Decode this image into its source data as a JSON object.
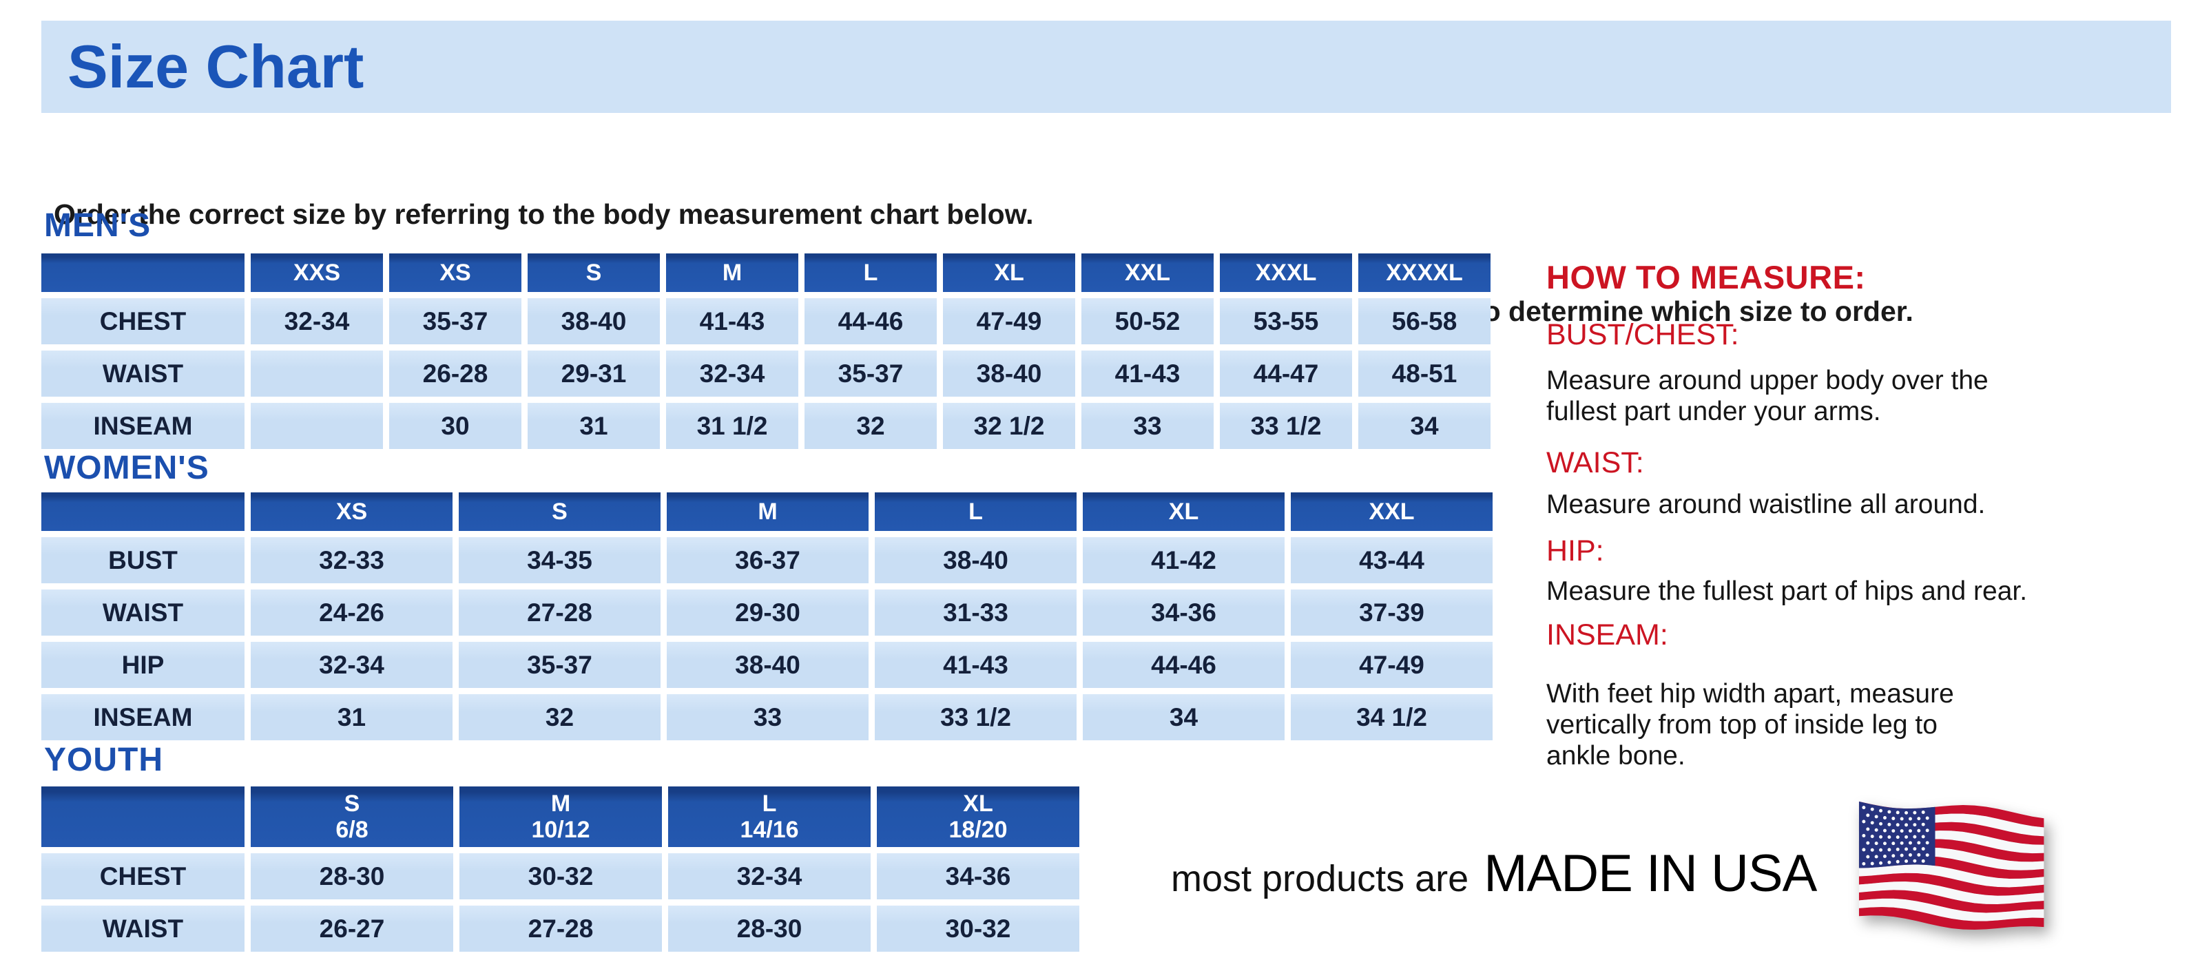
{
  "title": "Size Chart",
  "intro": {
    "line1": "Order the correct size by referring to the body measurement chart below.",
    "line2": "Measurements shown on size chart are body measurements.  Find your body measurements on the chart to determine which size to order."
  },
  "tables": {
    "mens": {
      "heading": "MEN'S",
      "columns": [
        "",
        "XXS",
        "XS",
        "S",
        "M",
        "L",
        "XL",
        "XXL",
        "XXXL",
        "XXXXL"
      ],
      "rows": [
        {
          "label": "CHEST",
          "values": [
            "32-34",
            "35-37",
            "38-40",
            "41-43",
            "44-46",
            "47-49",
            "50-52",
            "53-55",
            "56-58"
          ]
        },
        {
          "label": "WAIST",
          "values": [
            "",
            "26-28",
            "29-31",
            "32-34",
            "35-37",
            "38-40",
            "41-43",
            "44-47",
            "48-51"
          ]
        },
        {
          "label": "INSEAM",
          "values": [
            "",
            "30",
            "31",
            "31 1/2",
            "32",
            "32 1/2",
            "33",
            "33 1/2",
            "34"
          ]
        }
      ]
    },
    "womens": {
      "heading": "WOMEN'S",
      "columns": [
        "",
        "XS",
        "S",
        "M",
        "L",
        "XL",
        "XXL"
      ],
      "rows": [
        {
          "label": "BUST",
          "values": [
            "32-33",
            "34-35",
            "36-37",
            "38-40",
            "41-42",
            "43-44"
          ]
        },
        {
          "label": "WAIST",
          "values": [
            "24-26",
            "27-28",
            "29-30",
            "31-33",
            "34-36",
            "37-39"
          ]
        },
        {
          "label": "HIP",
          "values": [
            "32-34",
            "35-37",
            "38-40",
            "41-43",
            "44-46",
            "47-49"
          ]
        },
        {
          "label": "INSEAM",
          "values": [
            "31",
            "32",
            "33",
            "33 1/2",
            "34",
            "34 1/2"
          ]
        }
      ]
    },
    "youth": {
      "heading": "YOUTH",
      "columns": [
        "",
        "S\n6/8",
        "M\n10/12",
        "L\n14/16",
        "XL\n18/20"
      ],
      "rows": [
        {
          "label": "CHEST",
          "values": [
            "28-30",
            "30-32",
            "32-34",
            "34-36"
          ]
        },
        {
          "label": "WAIST",
          "values": [
            "26-27",
            "27-28",
            "28-30",
            "30-32"
          ]
        }
      ]
    }
  },
  "how_to_measure": {
    "heading": "HOW TO MEASURE:",
    "items": [
      {
        "label": "BUST/CHEST:",
        "text": "Measure around upper body over the\nfullest part under your arms."
      },
      {
        "label": "WAIST:",
        "text": "Measure around waistline all around."
      },
      {
        "label": "HIP:",
        "text": "Measure the fullest part of hips and rear."
      },
      {
        "label": "INSEAM:",
        "text": "With feet hip width apart, measure\nvertically from top of inside leg to\nankle bone."
      }
    ]
  },
  "footer": {
    "prefix": "most products are",
    "emphasis": "MADE IN USA",
    "flag_icon": "us-flag-icon"
  },
  "colors": {
    "band_blue": "#cfe2f6",
    "title_blue": "#1b55b8",
    "heading_blue": "#1b4fae",
    "header_blue": "#2154a9",
    "cell_blue": "#c9def4",
    "red": "#cc1422",
    "flag_red": "#c8102e",
    "flag_navy": "#27337e"
  }
}
